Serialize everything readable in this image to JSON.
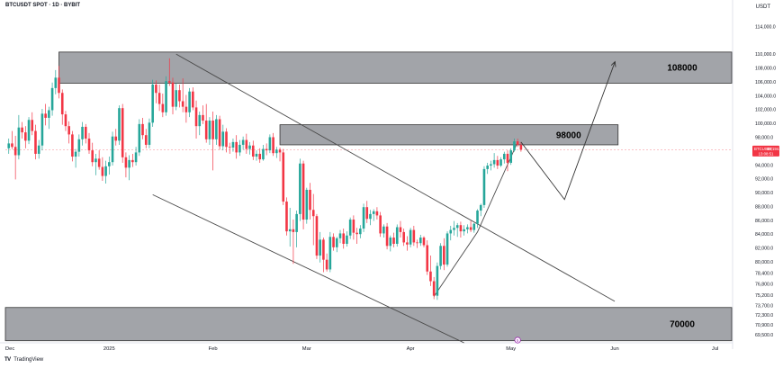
{
  "header": {
    "symbol_title": "BTCUSDT SPOT · 1D · BYBIT",
    "currency": "USDT"
  },
  "branding": {
    "name": "TradingView",
    "icon": "tradingview-logo-icon"
  },
  "colors": {
    "up": "#26a69a",
    "down": "#f23645",
    "zone_fill": "#7b7d84",
    "line": "#4a4a4a",
    "price_tag": "#f23645",
    "grid": "#f0f3fa"
  },
  "chart_data": {
    "type": "candlestick",
    "symbol": "BTCUSDT",
    "timeframe": "1D",
    "exchange": "BYBIT",
    "ylim": [
      68300,
      116000
    ],
    "y_ticks": [
      "114,000.0",
      "110,000.0",
      "108,000.0",
      "106,000.0",
      "104,000.0",
      "102,000.0",
      "100,000.0",
      "98,000.0",
      "96,000.0",
      "94,000.0",
      "92,000.0",
      "90,000.0",
      "88,000.0",
      "86,000.0",
      "84,000.0",
      "82,000.0",
      "80,000.0",
      "78,400.0",
      "76,800.0",
      "75,200.0",
      "73,700.0",
      "72,300.0",
      "70,900.0",
      "69,500.0"
    ],
    "x_ticks": [
      {
        "label": "Dec",
        "day": 0
      },
      {
        "label": "2025",
        "day": 31
      },
      {
        "label": "Feb",
        "day": 62
      },
      {
        "label": "Mar",
        "day": 90
      },
      {
        "label": "Apr",
        "day": 121
      },
      {
        "label": "May",
        "day": 151
      },
      {
        "label": "Jun",
        "day": 182
      },
      {
        "label": "Jul",
        "day": 212
      }
    ],
    "last_price": {
      "symbol": "BTCUSDT",
      "price": "96,194.4",
      "value": 96194.4,
      "countdown": "13:08:51"
    },
    "zones": [
      {
        "label": "108000",
        "from_day": 16,
        "to_day": 218,
        "low": 105800,
        "high": 110300
      },
      {
        "label": "98000",
        "from_day": 82,
        "to_day": 183,
        "low": 96900,
        "high": 99800
      },
      {
        "label": "70000",
        "from_day": 0,
        "to_day": 218,
        "low": 68600,
        "high": 73400
      }
    ],
    "trendlines": [
      {
        "name": "channel-upper",
        "points": [
          [
            51,
            110000
          ],
          [
            182,
            74300
          ]
        ]
      },
      {
        "name": "channel-lower",
        "points": [
          [
            44,
            89700
          ],
          [
            137,
            68300
          ]
        ]
      },
      {
        "name": "rally-leg",
        "points": [
          [
            128,
            75000
          ],
          [
            141,
            84300
          ],
          [
            153,
            97300
          ]
        ]
      }
    ],
    "projection": {
      "points": [
        [
          154,
          97300
        ],
        [
          167,
          89000
        ],
        [
          182,
          108800
        ]
      ]
    },
    "events": [
      {
        "day": 153,
        "label": "5"
      }
    ],
    "candles": [
      [
        1,
        96400,
        97800,
        95600,
        97100
      ],
      [
        2,
        97100,
        98900,
        96300,
        96600
      ],
      [
        3,
        96600,
        98200,
        91900,
        95400
      ],
      [
        4,
        95400,
        101200,
        94800,
        99400
      ],
      [
        5,
        99400,
        100200,
        97800,
        98700
      ],
      [
        6,
        98700,
        99600,
        96400,
        97500
      ],
      [
        7,
        97500,
        100900,
        97000,
        100500
      ],
      [
        8,
        100500,
        101600,
        98300,
        98900
      ],
      [
        9,
        98900,
        99800,
        94800,
        95600
      ],
      [
        10,
        95600,
        97600,
        94900,
        96800
      ],
      [
        11,
        96800,
        102100,
        96100,
        101400
      ],
      [
        12,
        101400,
        102800,
        99700,
        100800
      ],
      [
        13,
        100800,
        102400,
        99200,
        101900
      ],
      [
        14,
        101900,
        105900,
        101100,
        105100
      ],
      [
        15,
        105100,
        107700,
        104200,
        106600
      ],
      [
        16,
        106600,
        108300,
        103600,
        104400
      ],
      [
        17,
        104400,
        104900,
        99800,
        101300
      ],
      [
        18,
        101300,
        101800,
        98900,
        99600
      ],
      [
        19,
        99600,
        100300,
        97100,
        98400
      ],
      [
        20,
        98400,
        98900,
        94500,
        95200
      ],
      [
        21,
        95200,
        96300,
        93600,
        95900
      ],
      [
        22,
        95900,
        98400,
        95200,
        97700
      ],
      [
        23,
        97700,
        100200,
        96800,
        99500
      ],
      [
        24,
        99500,
        99900,
        97100,
        97800
      ],
      [
        25,
        97800,
        98600,
        95600,
        96100
      ],
      [
        26,
        96100,
        97200,
        93800,
        94400
      ],
      [
        27,
        94400,
        95600,
        92500,
        94900
      ],
      [
        28,
        94900,
        96100,
        93300,
        93700
      ],
      [
        29,
        93700,
        95100,
        91700,
        92400
      ],
      [
        30,
        92400,
        94600,
        91300,
        93800
      ],
      [
        31,
        93800,
        95200,
        92600,
        94400
      ],
      [
        32,
        94400,
        98800,
        93900,
        98100
      ],
      [
        33,
        98100,
        99200,
        96800,
        97500
      ],
      [
        34,
        97500,
        102600,
        96900,
        102200
      ],
      [
        35,
        102200,
        102800,
        94300,
        95100
      ],
      [
        36,
        95100,
        95800,
        92200,
        93600
      ],
      [
        37,
        93600,
        95400,
        91800,
        94700
      ],
      [
        38,
        94700,
        95600,
        93700,
        94400
      ],
      [
        39,
        94400,
        96600,
        93900,
        95800
      ],
      [
        40,
        95800,
        100600,
        95300,
        99900
      ],
      [
        41,
        99900,
        100800,
        97700,
        98300
      ],
      [
        42,
        98300,
        99200,
        96400,
        96900
      ],
      [
        43,
        96900,
        100700,
        96400,
        100100
      ],
      [
        44,
        100100,
        106300,
        99500,
        105600
      ],
      [
        45,
        105600,
        106200,
        102900,
        104400
      ],
      [
        46,
        104400,
        105600,
        101800,
        102800
      ],
      [
        47,
        102800,
        104300,
        100900,
        101600
      ],
      [
        48,
        101600,
        106800,
        101100,
        106100
      ],
      [
        49,
        106100,
        109400,
        105400,
        105900
      ],
      [
        50,
        105900,
        106600,
        101300,
        102400
      ],
      [
        51,
        102400,
        105800,
        101900,
        104800
      ],
      [
        52,
        104800,
        105600,
        102300,
        103200
      ],
      [
        53,
        103200,
        106500,
        101600,
        102400
      ],
      [
        54,
        102400,
        104100,
        100100,
        101600
      ],
      [
        55,
        101600,
        105100,
        100900,
        104600
      ],
      [
        56,
        104600,
        105200,
        101900,
        102300
      ],
      [
        57,
        102300,
        103300,
        97800,
        99600
      ],
      [
        58,
        99600,
        101700,
        98300,
        101200
      ],
      [
        59,
        101200,
        102600,
        99900,
        100400
      ],
      [
        60,
        100400,
        102800,
        97200,
        97700
      ],
      [
        61,
        97700,
        100900,
        96900,
        100400
      ],
      [
        62,
        100400,
        101700,
        93200,
        97700
      ],
      [
        63,
        97700,
        101200,
        96900,
        100600
      ],
      [
        64,
        100600,
        101100,
        96200,
        96700
      ],
      [
        65,
        96700,
        99800,
        96100,
        98800
      ],
      [
        66,
        98800,
        99300,
        95800,
        96600
      ],
      [
        67,
        96600,
        97200,
        95600,
        96500
      ],
      [
        68,
        96500,
        97800,
        95900,
        97300
      ],
      [
        69,
        97300,
        98300,
        94900,
        95800
      ],
      [
        70,
        95800,
        97600,
        95300,
        96900
      ],
      [
        71,
        96900,
        98100,
        96200,
        97600
      ],
      [
        72,
        97600,
        98500,
        95600,
        96300
      ],
      [
        73,
        96300,
        97300,
        95500,
        96800
      ],
      [
        74,
        96800,
        97500,
        94700,
        95200
      ],
      [
        75,
        95200,
        96100,
        94600,
        95600
      ],
      [
        76,
        95600,
        96400,
        94300,
        94800
      ],
      [
        77,
        94800,
        96900,
        94600,
        96300
      ],
      [
        78,
        96300,
        97100,
        95400,
        96100
      ],
      [
        79,
        96100,
        98400,
        95700,
        98000
      ],
      [
        80,
        98000,
        98600,
        95300,
        95700
      ],
      [
        81,
        95700,
        96600,
        95000,
        96200
      ],
      [
        82,
        96200,
        96500,
        94500,
        95800
      ],
      [
        83,
        95800,
        96300,
        88200,
        88700
      ],
      [
        84,
        88700,
        89300,
        83800,
        84400
      ],
      [
        85,
        84400,
        87800,
        82200,
        84700
      ],
      [
        86,
        84700,
        86100,
        79700,
        84300
      ],
      [
        87,
        84300,
        87400,
        82100,
        86900
      ],
      [
        88,
        86900,
        94900,
        85900,
        94200
      ],
      [
        89,
        94200,
        94600,
        84700,
        86100
      ],
      [
        90,
        86100,
        90700,
        85500,
        90400
      ],
      [
        91,
        90400,
        91400,
        86100,
        87500
      ],
      [
        92,
        87500,
        89800,
        82400,
        86600
      ],
      [
        93,
        86600,
        86900,
        80400,
        80900
      ],
      [
        94,
        80900,
        84300,
        79900,
        83200
      ],
      [
        95,
        83200,
        83500,
        78500,
        80300
      ],
      [
        96,
        80300,
        81200,
        78600,
        78900
      ],
      [
        97,
        78900,
        84300,
        78500,
        83600
      ],
      [
        98,
        83600,
        84100,
        81600,
        82100
      ],
      [
        99,
        82100,
        83600,
        81400,
        83400
      ],
      [
        100,
        83400,
        84600,
        82700,
        84100
      ],
      [
        101,
        84100,
        84800,
        81900,
        82600
      ],
      [
        102,
        82600,
        84400,
        82200,
        83800
      ],
      [
        103,
        83800,
        86400,
        83300,
        86100
      ],
      [
        104,
        86100,
        86700,
        83200,
        84200
      ],
      [
        105,
        84200,
        84900,
        82600,
        84000
      ],
      [
        106,
        84000,
        85300,
        83400,
        84800
      ],
      [
        107,
        84800,
        88400,
        84300,
        87900
      ],
      [
        108,
        87900,
        88800,
        85600,
        86200
      ],
      [
        109,
        86200,
        87500,
        85300,
        86900
      ],
      [
        110,
        86900,
        87600,
        85900,
        87300
      ],
      [
        111,
        87300,
        87900,
        86100,
        86700
      ],
      [
        112,
        86700,
        87200,
        83600,
        84100
      ],
      [
        113,
        84100,
        85400,
        83500,
        85100
      ],
      [
        114,
        85100,
        85600,
        81800,
        82300
      ],
      [
        115,
        82300,
        83800,
        81500,
        83500
      ],
      [
        116,
        83500,
        84200,
        82100,
        82600
      ],
      [
        117,
        82600,
        85400,
        82200,
        85000
      ],
      [
        118,
        85000,
        85900,
        83500,
        84300
      ],
      [
        119,
        84300,
        84800,
        82300,
        82800
      ],
      [
        120,
        82800,
        83700,
        81600,
        82500
      ],
      [
        121,
        82500,
        84900,
        82100,
        84600
      ],
      [
        122,
        84600,
        85200,
        82300,
        82800
      ],
      [
        123,
        82800,
        83200,
        82000,
        82700
      ],
      [
        124,
        82700,
        83900,
        82300,
        83500
      ],
      [
        125,
        83500,
        83700,
        82100,
        82400
      ],
      [
        126,
        82400,
        83100,
        78100,
        78600
      ],
      [
        127,
        78600,
        80900,
        76500,
        77200
      ],
      [
        128,
        77200,
        77800,
        74600,
        75100
      ],
      [
        129,
        75100,
        79900,
        74500,
        79400
      ],
      [
        130,
        79400,
        82700,
        78900,
        82300
      ],
      [
        131,
        82300,
        83400,
        78800,
        79600
      ],
      [
        132,
        79600,
        84400,
        79300,
        84100
      ],
      [
        133,
        84100,
        85200,
        83100,
        84600
      ],
      [
        134,
        84600,
        85900,
        83800,
        84900
      ],
      [
        135,
        84900,
        85600,
        83600,
        85300
      ],
      [
        136,
        85300,
        85800,
        83500,
        84400
      ],
      [
        137,
        84400,
        85300,
        83800,
        84700
      ],
      [
        138,
        84700,
        85400,
        84100,
        85000
      ],
      [
        139,
        85000,
        85900,
        84300,
        84600
      ],
      [
        140,
        84600,
        85600,
        84200,
        85500
      ],
      [
        141,
        85500,
        87600,
        84900,
        87400
      ],
      [
        142,
        87400,
        88400,
        86600,
        88200
      ],
      [
        143,
        88200,
        93800,
        87800,
        93400
      ],
      [
        144,
        93400,
        94300,
        92700,
        93900
      ],
      [
        145,
        93900,
        94600,
        93200,
        94100
      ],
      [
        146,
        94100,
        95700,
        93600,
        94700
      ],
      [
        147,
        94700,
        95300,
        93400,
        93900
      ],
      [
        148,
        93900,
        95100,
        93700,
        94800
      ],
      [
        149,
        94800,
        95900,
        94200,
        95600
      ],
      [
        150,
        95600,
        96100,
        93100,
        94300
      ],
      [
        151,
        94300,
        96400,
        94000,
        96100
      ],
      [
        152,
        96100,
        97800,
        95900,
        97400
      ],
      [
        153,
        97400,
        97800,
        96600,
        96900
      ],
      [
        154,
        96900,
        97300,
        95900,
        96194
      ]
    ]
  }
}
